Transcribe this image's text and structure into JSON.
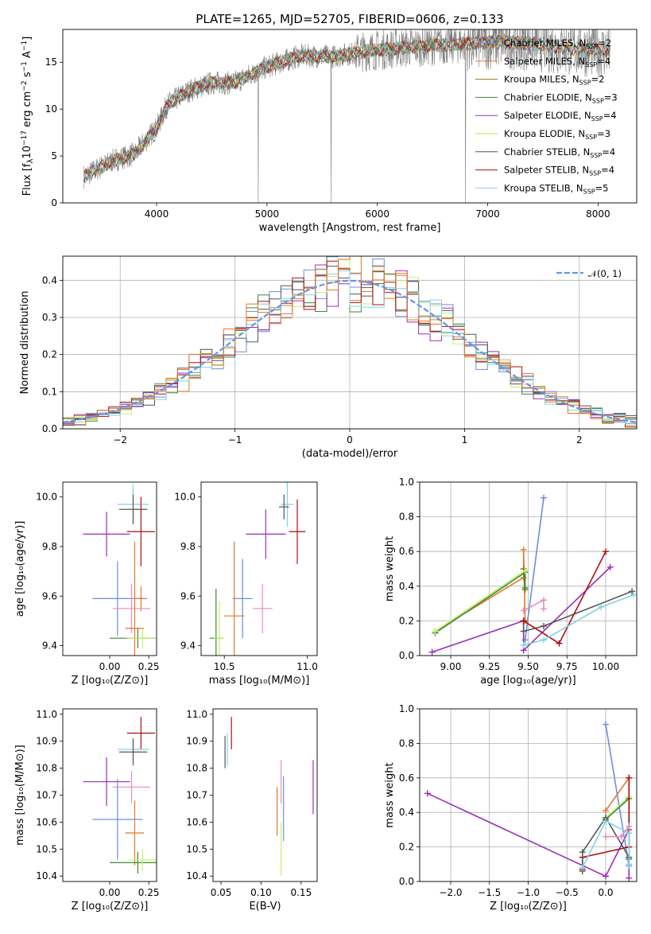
{
  "figure_title": "PLATE=1265, MJD=52705, FIBERID=0606, z=0.133",
  "colors": {
    "chabrier_miles": "#6a8fe0",
    "salpeter_miles": "#e0782e",
    "kroupa_miles": "#8b7a1a",
    "chabrier_elodie": "#3a8a3a",
    "salpeter_elodie": "#9b2fb8",
    "kroupa_elodie": "#d4d83a",
    "chabrier_stelib": "#555555",
    "salpeter_stelib": "#aa1111",
    "kroupa_stelib": "#7fd3e0",
    "pink": "#e88cc0",
    "lime": "#c7ef6a",
    "gray": "#808080",
    "normal": "#6495ed"
  },
  "chart_data": [
    {
      "id": "spectrum",
      "type": "line",
      "xlabel": "wavelength [Angstrom, rest frame]",
      "ylabel_parts": [
        "Flux [f",
        "λ",
        "10",
        "−17",
        " erg cm",
        "−2",
        " s",
        "−1",
        " A",
        "−1",
        "]"
      ],
      "xlim": [
        3150,
        8350
      ],
      "ylim": [
        0,
        18.5
      ],
      "xticks": [
        4000,
        5000,
        6000,
        7000,
        8000
      ],
      "yticks": [
        0,
        5,
        10,
        15
      ],
      "data_range": [
        3340,
        8110
      ],
      "continuum": [
        [
          3340,
          2.8
        ],
        [
          3600,
          4.5
        ],
        [
          3800,
          5.2
        ],
        [
          4000,
          8
        ],
        [
          4100,
          10.5
        ],
        [
          4300,
          12
        ],
        [
          4500,
          12.8
        ],
        [
          4700,
          12.8
        ],
        [
          5000,
          14.5
        ],
        [
          5300,
          15.7
        ],
        [
          5600,
          15.6
        ],
        [
          5900,
          16.2
        ],
        [
          6200,
          16.5
        ],
        [
          6500,
          16.8
        ],
        [
          6800,
          17
        ],
        [
          7100,
          17.2
        ],
        [
          7400,
          17
        ],
        [
          7700,
          16.5
        ],
        [
          8110,
          16.2
        ]
      ],
      "legend": [
        {
          "label": "Chabrier MILES, N",
          "sub": "SSP",
          "eq": "=2",
          "color_key": "chabrier_miles"
        },
        {
          "label": "Salpeter MILES, N",
          "sub": "SSP",
          "eq": "=4",
          "color_key": "salpeter_miles"
        },
        {
          "label": "Kroupa MILES, N",
          "sub": "SSP",
          "eq": "=2",
          "color_key": "kroupa_miles"
        },
        {
          "label": "Chabrier ELODIE, N",
          "sub": "SSP",
          "eq": "=3",
          "color_key": "chabrier_elodie"
        },
        {
          "label": "Salpeter ELODIE, N",
          "sub": "SSP",
          "eq": "=4",
          "color_key": "salpeter_elodie"
        },
        {
          "label": "Kroupa ELODIE, N",
          "sub": "SSP",
          "eq": "=3",
          "color_key": "kroupa_elodie"
        },
        {
          "label": "Chabrier STELIB, N",
          "sub": "SSP",
          "eq": "=4",
          "color_key": "chabrier_stelib"
        },
        {
          "label": "Salpeter STELIB, N",
          "sub": "SSP",
          "eq": "=4",
          "color_key": "salpeter_stelib"
        },
        {
          "label": "Kroupa STELIB, N",
          "sub": "SSP",
          "eq": "=5",
          "color_key": "kroupa_stelib"
        }
      ]
    },
    {
      "id": "residuals",
      "type": "line",
      "xlabel": "(data-model)/error",
      "ylabel": "Normed distribution",
      "xlim": [
        -2.5,
        2.5
      ],
      "ylim": [
        0,
        0.465
      ],
      "xticks": [
        -2,
        -1,
        0,
        1,
        2
      ],
      "xtick_labels": [
        "−2",
        "−1",
        "0",
        "1",
        "2"
      ],
      "yticks": [
        0.0,
        0.1,
        0.2,
        0.3,
        0.4
      ],
      "ytick_labels": [
        "0.0",
        "0.1",
        "0.2",
        "0.3",
        "0.4"
      ],
      "grid": true,
      "legend": {
        "label": "𝒩(0, 1)",
        "color_key": "normal"
      },
      "bin_range": [
        -2.5,
        2.5
      ],
      "n_bins": 50
    },
    {
      "id": "age_vs_Z",
      "type": "scatter",
      "xlabel": "Z [log₁₀(Z/Z⊙)]",
      "ylabel": "age  [log₁₀(age/yr)]",
      "xlim": [
        -0.3,
        0.3
      ],
      "ylim": [
        9.36,
        10.06
      ],
      "xticks": [
        0.0,
        0.25
      ],
      "xtick_labels": [
        "0.00",
        "0.25"
      ],
      "yticks": [
        9.4,
        9.6,
        9.8,
        10.0
      ],
      "ytick_labels": [
        "9.4",
        "9.6",
        "9.8",
        "10.0"
      ],
      "points": [
        {
          "x": 0.15,
          "y": 9.97,
          "xerr": 0.1,
          "yerr": 0.08,
          "color_key": "kroupa_stelib"
        },
        {
          "x": 0.15,
          "y": 9.95,
          "xerr": 0.09,
          "yerr": 0.06,
          "color_key": "chabrier_stelib"
        },
        {
          "x": 0.2,
          "y": 9.86,
          "xerr": 0.09,
          "yerr": 0.14,
          "color_key": "salpeter_stelib"
        },
        {
          "x": -0.02,
          "y": 9.85,
          "xerr": 0.15,
          "yerr": 0.09,
          "color_key": "salpeter_elodie"
        },
        {
          "x": 0.05,
          "y": 9.59,
          "xerr": 0.16,
          "yerr": 0.15,
          "color_key": "chabrier_miles"
        },
        {
          "x": 0.2,
          "y": 9.59,
          "xerr": 0.04,
          "yerr": 0.05,
          "color_key": "salpeter_miles"
        },
        {
          "x": 0.14,
          "y": 9.55,
          "xerr": 0.12,
          "yerr": 0.1,
          "color_key": "pink"
        },
        {
          "x": 0.16,
          "y": 9.47,
          "xerr": 0.06,
          "yerr": 0.35,
          "color_key": "salpeter_miles"
        },
        {
          "x": 0.18,
          "y": 9.43,
          "xerr": 0.18,
          "yerr": 0.04,
          "color_key": "chabrier_elodie"
        },
        {
          "x": 0.21,
          "y": 9.43,
          "xerr": 0.1,
          "yerr": 0.04,
          "color_key": "lime"
        }
      ]
    },
    {
      "id": "age_vs_mass",
      "type": "scatter",
      "xlabel": "mass [log₁₀(M/M⊙)]",
      "xlim": [
        10.36,
        11.06
      ],
      "ylim": [
        9.36,
        10.06
      ],
      "xticks": [
        10.5,
        11.0
      ],
      "xtick_labels": [
        "10.5",
        "11.0"
      ],
      "yticks": [
        9.4,
        9.6,
        9.8,
        10.0
      ],
      "ytick_labels": [
        "9.4",
        "9.6",
        "9.8",
        "10.0"
      ],
      "points": [
        {
          "x": 10.88,
          "y": 9.97,
          "xerr": 0.04,
          "yerr": 0.09,
          "color_key": "kroupa_stelib"
        },
        {
          "x": 10.86,
          "y": 9.96,
          "xerr": 0.03,
          "yerr": 0.05,
          "color_key": "chabrier_stelib"
        },
        {
          "x": 10.94,
          "y": 9.86,
          "xerr": 0.05,
          "yerr": 0.13,
          "color_key": "salpeter_stelib"
        },
        {
          "x": 10.75,
          "y": 9.85,
          "xerr": 0.12,
          "yerr": 0.1,
          "color_key": "salpeter_elodie"
        },
        {
          "x": 10.61,
          "y": 9.59,
          "xerr": 0.06,
          "yerr": 0.16,
          "color_key": "chabrier_miles"
        },
        {
          "x": 10.56,
          "y": 9.52,
          "xerr": 0.06,
          "yerr": 0.3,
          "color_key": "salpeter_miles"
        },
        {
          "x": 10.73,
          "y": 9.55,
          "xerr": 0.06,
          "yerr": 0.1,
          "color_key": "pink"
        },
        {
          "x": 10.45,
          "y": 9.43,
          "xerr": 0.04,
          "yerr": 0.2,
          "color_key": "chabrier_elodie"
        },
        {
          "x": 10.47,
          "y": 9.43,
          "xerr": 0.03,
          "yerr": 0.15,
          "color_key": "lime"
        }
      ]
    },
    {
      "id": "weight_vs_age",
      "type": "line",
      "xlabel": "age  [log₁₀(age/yr)]",
      "ylabel": "mass weight",
      "xlim": [
        8.8,
        10.2
      ],
      "ylim": [
        0,
        1.0
      ],
      "xticks": [
        9.0,
        9.25,
        9.5,
        9.75,
        10.0
      ],
      "xtick_labels": [
        "9.00",
        "9.25",
        "9.50",
        "9.75",
        "10.00"
      ],
      "yticks": [
        0,
        0.2,
        0.4,
        0.6,
        0.8,
        1.0
      ],
      "ytick_labels": [
        "0.0",
        "0.2",
        "0.4",
        "0.6",
        "0.8",
        "1.0"
      ],
      "grid": true,
      "series": [
        {
          "color_key": "chabrier_miles",
          "points": [
            [
              9.48,
              0.09
            ],
            [
              9.6,
              0.91
            ]
          ]
        },
        {
          "color_key": "salpeter_miles",
          "points": [
            [
              8.9,
              0.14
            ],
            [
              9.47,
              0.45
            ],
            [
              9.47,
              0.61
            ],
            [
              9.48,
              0.2
            ]
          ]
        },
        {
          "color_key": "kroupa_miles",
          "points": [
            [
              9.47,
              0.5
            ],
            [
              9.48,
              0.38
            ]
          ]
        },
        {
          "color_key": "chabrier_elodie",
          "points": [
            [
              8.9,
              0.13
            ],
            [
              9.48,
              0.48
            ],
            [
              9.48,
              0.39
            ]
          ]
        },
        {
          "color_key": "salpeter_elodie",
          "points": [
            [
              8.88,
              0.02
            ],
            [
              9.47,
              0.2
            ],
            [
              9.47,
              0.03
            ],
            [
              10.03,
              0.51
            ]
          ]
        },
        {
          "color_key": "lime",
          "points": [
            [
              8.9,
              0.14
            ],
            [
              9.48,
              0.49
            ]
          ]
        },
        {
          "color_key": "chabrier_stelib",
          "points": [
            [
              9.47,
              0.2
            ],
            [
              9.47,
              0.14
            ],
            [
              9.6,
              0.17
            ],
            [
              10.17,
              0.37
            ]
          ]
        },
        {
          "color_key": "salpeter_stelib",
          "points": [
            [
              9.47,
              0.2
            ],
            [
              9.7,
              0.07
            ],
            [
              10.0,
              0.6
            ]
          ]
        },
        {
          "color_key": "kroupa_stelib",
          "points": [
            [
              9.47,
              0.06
            ],
            [
              9.6,
              0.09
            ],
            [
              9.97,
              0.28
            ],
            [
              10.18,
              0.35
            ]
          ]
        },
        {
          "color_key": "pink",
          "points": [
            [
              9.47,
              0.26
            ],
            [
              9.6,
              0.32
            ],
            [
              9.6,
              0.27
            ]
          ]
        }
      ]
    },
    {
      "id": "mass_vs_Z",
      "type": "scatter",
      "xlabel": "Z [log₁₀(Z/Z⊙)]",
      "ylabel": "mass [log₁₀(M/M⊙)]",
      "xlim": [
        -0.3,
        0.3
      ],
      "ylim": [
        10.38,
        11.02
      ],
      "xticks": [
        0.0,
        0.25
      ],
      "xtick_labels": [
        "0.00",
        "0.25"
      ],
      "yticks": [
        10.4,
        10.5,
        10.6,
        10.7,
        10.8,
        10.9,
        11.0
      ],
      "ytick_labels": [
        "10.4",
        "10.5",
        "10.6",
        "10.7",
        "10.8",
        "10.9",
        "11.0"
      ],
      "points": [
        {
          "x": 0.2,
          "y": 10.93,
          "xerr": 0.09,
          "yerr": 0.06,
          "color_key": "salpeter_stelib"
        },
        {
          "x": 0.15,
          "y": 10.87,
          "xerr": 0.1,
          "yerr": 0.04,
          "color_key": "kroupa_stelib"
        },
        {
          "x": 0.15,
          "y": 10.86,
          "xerr": 0.09,
          "yerr": 0.05,
          "color_key": "chabrier_stelib"
        },
        {
          "x": -0.02,
          "y": 10.75,
          "xerr": 0.15,
          "yerr": 0.09,
          "color_key": "salpeter_elodie"
        },
        {
          "x": 0.14,
          "y": 10.73,
          "xerr": 0.12,
          "yerr": 0.06,
          "color_key": "pink"
        },
        {
          "x": 0.05,
          "y": 10.61,
          "xerr": 0.16,
          "yerr": 0.15,
          "color_key": "chabrier_miles"
        },
        {
          "x": 0.16,
          "y": 10.56,
          "xerr": 0.06,
          "yerr": 0.12,
          "color_key": "salpeter_miles"
        },
        {
          "x": 0.18,
          "y": 10.45,
          "xerr": 0.18,
          "yerr": 0.04,
          "color_key": "chabrier_elodie"
        },
        {
          "x": 0.21,
          "y": 10.46,
          "xerr": 0.09,
          "yerr": 0.04,
          "color_key": "lime"
        }
      ]
    },
    {
      "id": "mass_vs_ebv",
      "type": "scatter",
      "xlabel": "E(B-V)",
      "xlim": [
        0.04,
        0.17
      ],
      "ylim": [
        10.38,
        11.02
      ],
      "xticks": [
        0.05,
        0.1,
        0.15
      ],
      "xtick_labels": [
        "0.05",
        "0.10",
        "0.15"
      ],
      "yticks": [
        10.4,
        10.5,
        10.6,
        10.7,
        10.8,
        10.9,
        11.0
      ],
      "ytick_labels": [
        "10.4",
        "10.5",
        "10.6",
        "10.7",
        "10.8",
        "10.9",
        "11.0"
      ],
      "points": [
        {
          "x": 0.063,
          "y": 10.93,
          "xerr": 0.0,
          "yerr": 0.06,
          "color_key": "salpeter_stelib"
        },
        {
          "x": 0.058,
          "y": 10.87,
          "xerr": 0.0,
          "yerr": 0.06,
          "color_key": "kroupa_stelib"
        },
        {
          "x": 0.055,
          "y": 10.86,
          "xerr": 0.0,
          "yerr": 0.06,
          "color_key": "chabrier_stelib"
        },
        {
          "x": 0.125,
          "y": 10.75,
          "xerr": 0.0,
          "yerr": 0.08,
          "color_key": "pink"
        },
        {
          "x": 0.165,
          "y": 10.73,
          "xerr": 0.0,
          "yerr": 0.1,
          "color_key": "salpeter_elodie"
        },
        {
          "x": 0.128,
          "y": 10.65,
          "xerr": 0.0,
          "yerr": 0.12,
          "color_key": "chabrier_miles"
        },
        {
          "x": 0.12,
          "y": 10.64,
          "xerr": 0.0,
          "yerr": 0.09,
          "color_key": "salpeter_miles"
        },
        {
          "x": 0.125,
          "y": 10.5,
          "xerr": 0.0,
          "yerr": 0.1,
          "color_key": "lime"
        }
      ]
    },
    {
      "id": "weight_vs_Z",
      "type": "line",
      "xlabel": "Z [log₁₀(Z/Z⊙)]",
      "ylabel": "mass weight",
      "xlim": [
        -2.4,
        0.4
      ],
      "ylim": [
        0,
        1.0
      ],
      "xticks": [
        -2.0,
        -1.5,
        -1.0,
        -0.5,
        0.0
      ],
      "xtick_labels": [
        "−2.0",
        "−1.5",
        "−1.0",
        "−0.5",
        "0.0"
      ],
      "yticks": [
        0,
        0.2,
        0.4,
        0.6,
        0.8,
        1.0
      ],
      "ytick_labels": [
        "0.0",
        "0.2",
        "0.4",
        "0.6",
        "0.8",
        "1.0"
      ],
      "grid": true,
      "series": [
        {
          "color_key": "salpeter_elodie",
          "points": [
            [
              -2.3,
              0.51
            ],
            [
              0.0,
              0.03
            ],
            [
              0.3,
              0.3
            ],
            [
              0.3,
              0.02
            ]
          ]
        },
        {
          "color_key": "chabrier_miles",
          "points": [
            [
              0.0,
              0.91
            ],
            [
              0.3,
              0.09
            ]
          ]
        },
        {
          "color_key": "salpeter_miles",
          "points": [
            [
              0.0,
              0.41
            ],
            [
              0.3,
              0.6
            ],
            [
              0.3,
              0.2
            ]
          ]
        },
        {
          "color_key": "lime",
          "points": [
            [
              0.0,
              0.37
            ],
            [
              0.3,
              0.49
            ],
            [
              0.3,
              0.14
            ]
          ]
        },
        {
          "color_key": "chabrier_elodie",
          "points": [
            [
              0.0,
              0.36
            ],
            [
              0.3,
              0.48
            ],
            [
              0.3,
              0.13
            ]
          ]
        },
        {
          "color_key": "salpeter_stelib",
          "points": [
            [
              -0.3,
              0.07
            ],
            [
              -0.3,
              0.14
            ],
            [
              0.3,
              0.2
            ],
            [
              0.3,
              0.6
            ]
          ]
        },
        {
          "color_key": "chabrier_stelib",
          "points": [
            [
              -0.3,
              0.06
            ],
            [
              -0.3,
              0.17
            ],
            [
              0.0,
              0.37
            ],
            [
              0.3,
              0.14
            ]
          ]
        },
        {
          "color_key": "kroupa_stelib",
          "points": [
            [
              -0.3,
              0.08
            ],
            [
              0.0,
              0.35
            ],
            [
              0.3,
              0.28
            ],
            [
              0.3,
              0.1
            ]
          ]
        },
        {
          "color_key": "pink",
          "points": [
            [
              0.0,
              0.26
            ],
            [
              0.2,
              0.26
            ],
            [
              0.3,
              0.32
            ]
          ]
        }
      ]
    }
  ]
}
